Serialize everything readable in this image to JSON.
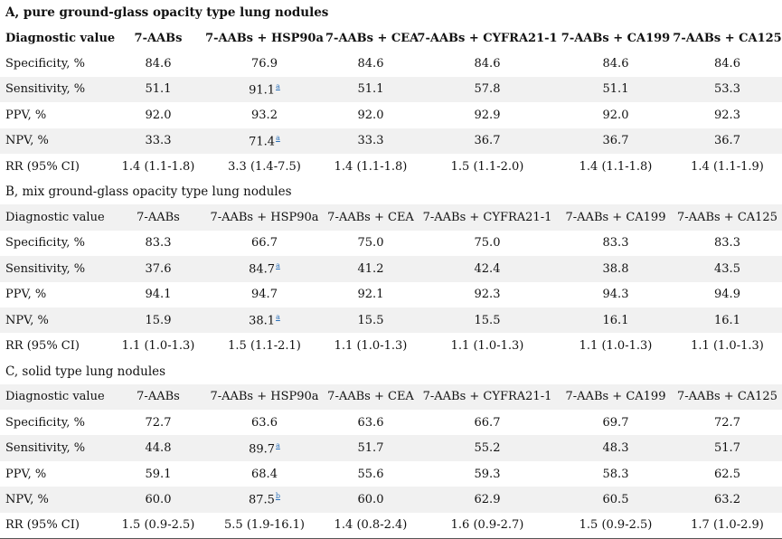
{
  "sections": [
    {
      "title": "A, pure ground-glass opacity type lung nodules",
      "headers": [
        "Diagnostic value",
        "7-AABs",
        "7-AABs + HSP90a",
        "7-AABs + CEA",
        "7-AABs + CYFRA21-1",
        "7-AABs + CA199",
        "7-AABs + CA125"
      ],
      "rows": [
        {
          "label": "Specificity, %",
          "values": [
            "84.6",
            "76.9",
            "84.6",
            "84.6",
            "84.6",
            "84.6"
          ],
          "footnote_col": null,
          "footnote": ""
        },
        {
          "label": "Sensitivity, %",
          "values": [
            "51.1",
            "91.1",
            "51.1",
            "57.8",
            "51.1",
            "53.3"
          ],
          "footnote_col": 1,
          "footnote": "a"
        },
        {
          "label": "PPV, %",
          "values": [
            "92.0",
            "93.2",
            "92.0",
            "92.9",
            "92.0",
            "92.3"
          ],
          "footnote_col": null,
          "footnote": ""
        },
        {
          "label": "NPV, %",
          "values": [
            "33.3",
            "71.4",
            "33.3",
            "36.7",
            "36.7",
            "36.7"
          ],
          "footnote_col": 1,
          "footnote": "a"
        },
        {
          "label": "RR (95% CI)",
          "values": [
            "1.4 (1.1-1.8)",
            "3.3 (1.4-7.5)",
            "1.4 (1.1-1.8)",
            "1.5 (1.1-2.0)",
            "1.4 (1.1-1.8)",
            "1.4 (1.1-1.9)"
          ],
          "footnote_col": null,
          "footnote": ""
        }
      ]
    },
    {
      "title": "B, mix ground-glass opacity type lung nodules",
      "headers": [
        "Diagnostic value",
        "7-AABs",
        "7-AABs + HSP90a",
        "7-AABs + CEA",
        "7-AABs + CYFRA21-1",
        "7-AABs + CA199",
        "7-AABs + CA125"
      ],
      "rows": [
        {
          "label": "Specificity, %",
          "values": [
            "83.3",
            "66.7",
            "75.0",
            "75.0",
            "83.3",
            "83.3"
          ],
          "footnote_col": null,
          "footnote": ""
        },
        {
          "label": "Sensitivity, %",
          "values": [
            "37.6",
            "84.7",
            "41.2",
            "42.4",
            "38.8",
            "43.5"
          ],
          "footnote_col": 1,
          "footnote": "a"
        },
        {
          "label": "PPV, %",
          "values": [
            "94.1",
            "94.7",
            "92.1",
            "92.3",
            "94.3",
            "94.9"
          ],
          "footnote_col": null,
          "footnote": ""
        },
        {
          "label": "NPV, %",
          "values": [
            "15.9",
            "38.1",
            "15.5",
            "15.5",
            "16.1",
            "16.1"
          ],
          "footnote_col": 1,
          "footnote": "a"
        },
        {
          "label": "RR (95% CI)",
          "values": [
            "1.1 (1.0-1.3)",
            "1.5 (1.1-2.1)",
            "1.1 (1.0-1.3)",
            "1.1 (1.0-1.3)",
            "1.1 (1.0-1.3)",
            "1.1 (1.0-1.3)"
          ],
          "footnote_col": null,
          "footnote": ""
        }
      ]
    },
    {
      "title": "C, solid type lung nodules",
      "headers": [
        "Diagnostic value",
        "7-AABs",
        "7-AABs + HSP90a",
        "7-AABs + CEA",
        "7-AABs + CYFRA21-1",
        "7-AABs + CA199",
        "7-AABs + CA125"
      ],
      "rows": [
        {
          "label": "Specificity, %",
          "values": [
            "72.7",
            "63.6",
            "63.6",
            "66.7",
            "69.7",
            "72.7"
          ],
          "footnote_col": null,
          "footnote": ""
        },
        {
          "label": "Sensitivity, %",
          "values": [
            "44.8",
            "89.7",
            "51.7",
            "55.2",
            "48.3",
            "51.7"
          ],
          "footnote_col": 1,
          "footnote": "a"
        },
        {
          "label": "PPV, %",
          "values": [
            "59.1",
            "68.4",
            "55.6",
            "59.3",
            "58.3",
            "62.5"
          ],
          "footnote_col": null,
          "footnote": ""
        },
        {
          "label": "NPV, %",
          "values": [
            "60.0",
            "87.5",
            "60.0",
            "62.9",
            "60.5",
            "63.2"
          ],
          "footnote_col": 1,
          "footnote": "b"
        },
        {
          "label": "RR (95% CI)",
          "values": [
            "1.5 (0.9-2.5)",
            "5.5 (1.9-16.1)",
            "1.4 (0.8-2.4)",
            "1.6 (0.9-2.7)",
            "1.5 (0.9-2.5)",
            "1.7 (1.0-2.9)"
          ],
          "footnote_col": null,
          "footnote": ""
        }
      ]
    }
  ]
}
